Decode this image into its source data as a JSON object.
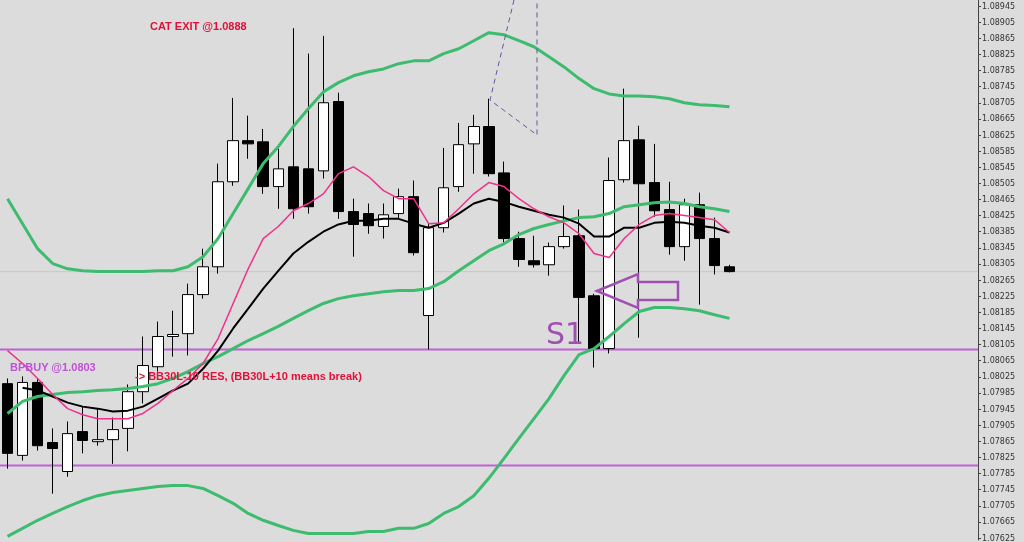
{
  "chart_data": {
    "type": "candlestick",
    "categories": [
      null,
      null,
      null,
      null,
      null,
      null,
      null,
      null,
      null,
      null,
      null,
      null,
      null,
      null,
      null,
      null,
      null,
      null,
      null,
      null,
      null,
      null,
      null,
      null,
      null,
      null,
      null,
      null,
      null,
      null,
      null,
      null,
      null,
      null,
      null,
      null,
      null,
      null,
      null,
      null,
      null,
      null,
      null,
      null,
      null,
      null,
      null,
      null,
      null
    ],
    "ohlc": [
      [
        1.08008,
        1.08021,
        1.07797,
        1.07835
      ],
      [
        1.0783,
        1.08026,
        1.07817,
        1.08011
      ],
      [
        1.08011,
        1.08021,
        1.07842,
        1.07854
      ],
      [
        1.07862,
        1.07897,
        1.07735,
        1.07847
      ],
      [
        1.0779,
        1.07914,
        1.07777,
        1.07884
      ],
      [
        1.07889,
        1.07951,
        1.07835,
        1.07867
      ],
      [
        1.07864,
        1.07946,
        1.07854,
        1.07869
      ],
      [
        1.07869,
        1.07924,
        1.07809,
        1.07894
      ],
      [
        1.07897,
        1.08006,
        1.0784,
        1.07988
      ],
      [
        1.07988,
        1.08125,
        1.07959,
        1.08053
      ],
      [
        1.0805,
        1.08162,
        1.08038,
        1.08125
      ],
      [
        1.08125,
        1.08189,
        1.08075,
        1.0813
      ],
      [
        1.08132,
        1.08256,
        1.08078,
        1.08229
      ],
      [
        1.08229,
        1.08343,
        1.08219,
        1.08298
      ],
      [
        1.08298,
        1.08554,
        1.08281,
        1.08509
      ],
      [
        1.08509,
        1.08717,
        1.08499,
        1.08611
      ],
      [
        1.08611,
        1.08673,
        1.08566,
        1.08603
      ],
      [
        1.08608,
        1.0864,
        1.08479,
        1.08497
      ],
      [
        1.08497,
        1.08591,
        1.08442,
        1.08541
      ],
      [
        1.08546,
        1.0889,
        1.08417,
        1.08442
      ],
      [
        1.08541,
        1.08827,
        1.0843,
        1.08447
      ],
      [
        1.08536,
        1.08871,
        1.08517,
        1.08705
      ],
      [
        1.08708,
        1.0873,
        1.08417,
        1.08435
      ],
      [
        1.08435,
        1.08467,
        1.08323,
        1.08403
      ],
      [
        1.0843,
        1.08455,
        1.0838,
        1.084
      ],
      [
        1.08398,
        1.08455,
        1.08368,
        1.08427
      ],
      [
        1.0843,
        1.08492,
        1.08417,
        1.08472
      ],
      [
        1.08472,
        1.08512,
        1.08326,
        1.08333
      ],
      [
        1.08177,
        1.08405,
        1.08093,
        1.08395
      ],
      [
        1.08395,
        1.08593,
        1.08383,
        1.08494
      ],
      [
        1.08497,
        1.08655,
        1.08484,
        1.08601
      ],
      [
        1.08603,
        1.08675,
        1.08529,
        1.08646
      ],
      [
        1.08646,
        1.08715,
        1.08522,
        1.08529
      ],
      [
        1.08531,
        1.08559,
        1.08358,
        1.08368
      ],
      [
        1.08368,
        1.08385,
        1.08298,
        1.08316
      ],
      [
        1.08313,
        1.08375,
        1.08296,
        1.08303
      ],
      [
        1.08303,
        1.08358,
        1.08276,
        1.08348
      ],
      [
        1.08348,
        1.0845,
        1.08343,
        1.08373
      ],
      [
        1.08375,
        1.0844,
        1.08107,
        1.08222
      ],
      [
        1.08226,
        1.08231,
        1.08048,
        1.08095
      ],
      [
        1.08095,
        1.08569,
        1.08083,
        1.08512
      ],
      [
        1.08514,
        1.0874,
        1.08507,
        1.08611
      ],
      [
        1.08613,
        1.08648,
        1.08122,
        1.08504
      ],
      [
        1.08507,
        1.08603,
        1.08422,
        1.08437
      ],
      [
        1.0844,
        1.08509,
        1.08328,
        1.08348
      ],
      [
        1.08348,
        1.08467,
        1.08313,
        1.08452
      ],
      [
        1.08452,
        1.08482,
        1.08204,
        1.08368
      ],
      [
        1.08368,
        1.0842,
        1.08279,
        1.08301
      ],
      [
        1.08298,
        1.08303,
        1.08284,
        1.08286
      ]
    ],
    "series": [
      {
        "type": "line",
        "color": "#3dbb6e",
        "values": [
          1.08467,
          1.08405,
          1.08343,
          1.08306,
          1.08293,
          1.08288,
          1.08286,
          1.08286,
          1.08286,
          1.08286,
          1.08288,
          1.08288,
          1.08298,
          1.08323,
          1.08368,
          1.0843,
          1.08492,
          1.08554,
          1.08596,
          1.08646,
          1.0869,
          1.08732,
          1.08755,
          1.08772,
          1.08782,
          1.08789,
          1.08802,
          1.08809,
          1.08809,
          1.08827,
          1.08839,
          1.08859,
          1.08879,
          1.08874,
          1.08859,
          1.08844,
          1.08819,
          1.08794,
          1.08765,
          1.0874,
          1.08727,
          1.08722,
          1.08722,
          1.0872,
          1.08715,
          1.08705,
          1.087,
          1.08698,
          1.08695
        ]
      },
      {
        "type": "line",
        "color": "#3dbb6e",
        "values": [
          1.07934,
          1.07964,
          1.07976,
          1.07981,
          1.07986,
          1.07988,
          1.07991,
          1.07993,
          1.07996,
          1.08001,
          1.08008,
          1.08021,
          1.08038,
          1.08058,
          1.08075,
          1.08095,
          1.08115,
          1.08132,
          1.0815,
          1.0817,
          1.08189,
          1.08207,
          1.08219,
          1.08226,
          1.08231,
          1.08236,
          1.08239,
          1.08239,
          1.08244,
          1.08261,
          1.08288,
          1.08313,
          1.08338,
          1.08355,
          1.08378,
          1.08393,
          1.08403,
          1.08412,
          1.0842,
          1.08422,
          1.0843,
          1.08447,
          1.08452,
          1.08457,
          1.08459,
          1.08455,
          1.08447,
          1.08442,
          1.08435
        ]
      },
      {
        "type": "line",
        "color": "#3dbb6e",
        "values": [
          1.07629,
          1.07649,
          1.07669,
          1.07686,
          1.07703,
          1.07718,
          1.0773,
          1.07738,
          1.07743,
          1.07748,
          1.07753,
          1.07755,
          1.07755,
          1.07748,
          1.0773,
          1.07711,
          1.07686,
          1.07669,
          1.07656,
          1.07644,
          1.07636,
          1.07636,
          1.07636,
          1.07636,
          1.07641,
          1.07641,
          1.07649,
          1.07649,
          1.07661,
          1.07686,
          1.07703,
          1.0773,
          1.07773,
          1.07822,
          1.07872,
          1.07921,
          1.07971,
          1.08028,
          1.0808,
          1.08095,
          1.08125,
          1.08157,
          1.08187,
          1.08197,
          1.08197,
          1.08194,
          1.08189,
          1.08179,
          1.0817
        ]
      },
      {
        "type": "line",
        "color": "#000000",
        "values": [
          null,
          1.07998,
          1.07991,
          1.07976,
          1.07961,
          1.07951,
          1.07946,
          1.07939,
          1.07941,
          1.07951,
          1.07971,
          1.07991,
          1.08008,
          1.08045,
          1.0809,
          1.08145,
          1.08194,
          1.08244,
          1.08288,
          1.08331,
          1.0836,
          1.08385,
          1.08403,
          1.08412,
          1.08412,
          1.08417,
          1.08417,
          1.08405,
          1.08395,
          1.08407,
          1.0843,
          1.08455,
          1.08467,
          1.08459,
          1.08447,
          1.08437,
          1.08427,
          1.0842,
          1.08405,
          1.08373,
          1.08373,
          1.08395,
          1.08395,
          1.08407,
          1.0841,
          1.08407,
          1.084,
          1.08395,
          1.08383
        ]
      },
      {
        "type": "line",
        "color": "#f0308a",
        "values": [
          1.0809,
          1.08058,
          1.08021,
          1.07981,
          1.07946,
          1.07931,
          1.07921,
          1.07921,
          1.07921,
          1.07934,
          1.07959,
          1.07991,
          1.08021,
          1.08058,
          1.0812,
          1.08207,
          1.08293,
          1.08368,
          1.08398,
          1.08437,
          1.08455,
          1.08479,
          1.08529,
          1.08546,
          1.08522,
          1.08487,
          1.08467,
          1.08467,
          1.08405,
          1.08407,
          1.08442,
          1.08479,
          1.08507,
          1.08497,
          1.08467,
          1.08442,
          1.08422,
          1.08407,
          1.0838,
          1.08331,
          1.08321,
          1.08368,
          1.08403,
          1.08425,
          1.0843,
          1.08425,
          1.0842,
          1.08415,
          1.08383
        ]
      }
    ],
    "ylim": [
      1.0762,
      1.0896
    ],
    "yticks": [
      1.07625,
      1.07665,
      1.07705,
      1.07745,
      1.07785,
      1.07825,
      1.07865,
      1.07905,
      1.07945,
      1.07985,
      1.08025,
      1.08065,
      1.08105,
      1.08145,
      1.08185,
      1.08225,
      1.08265,
      1.08305,
      1.08345,
      1.08385,
      1.08425,
      1.08465,
      1.08505,
      1.08545,
      1.08585,
      1.08625,
      1.08665,
      1.08705,
      1.08745,
      1.08785,
      1.08825,
      1.08865,
      1.08905,
      1.08945
    ],
    "ref_lines": [
      {
        "axis": "y",
        "value": 1.08093,
        "color": "#c060d8"
      },
      {
        "axis": "y",
        "value": 1.07805,
        "color": "#c060d8"
      },
      {
        "axis": "y",
        "value": 1.08286,
        "color": "#c8c8c8"
      }
    ],
    "annotations": [
      "CAT EXIT @1.0888",
      "BPBUY @1.0803",
      "-> BB30L-10 RES, (BB30L+10 means break)",
      "S1"
    ],
    "grid": false,
    "tick_labels": "y"
  }
}
